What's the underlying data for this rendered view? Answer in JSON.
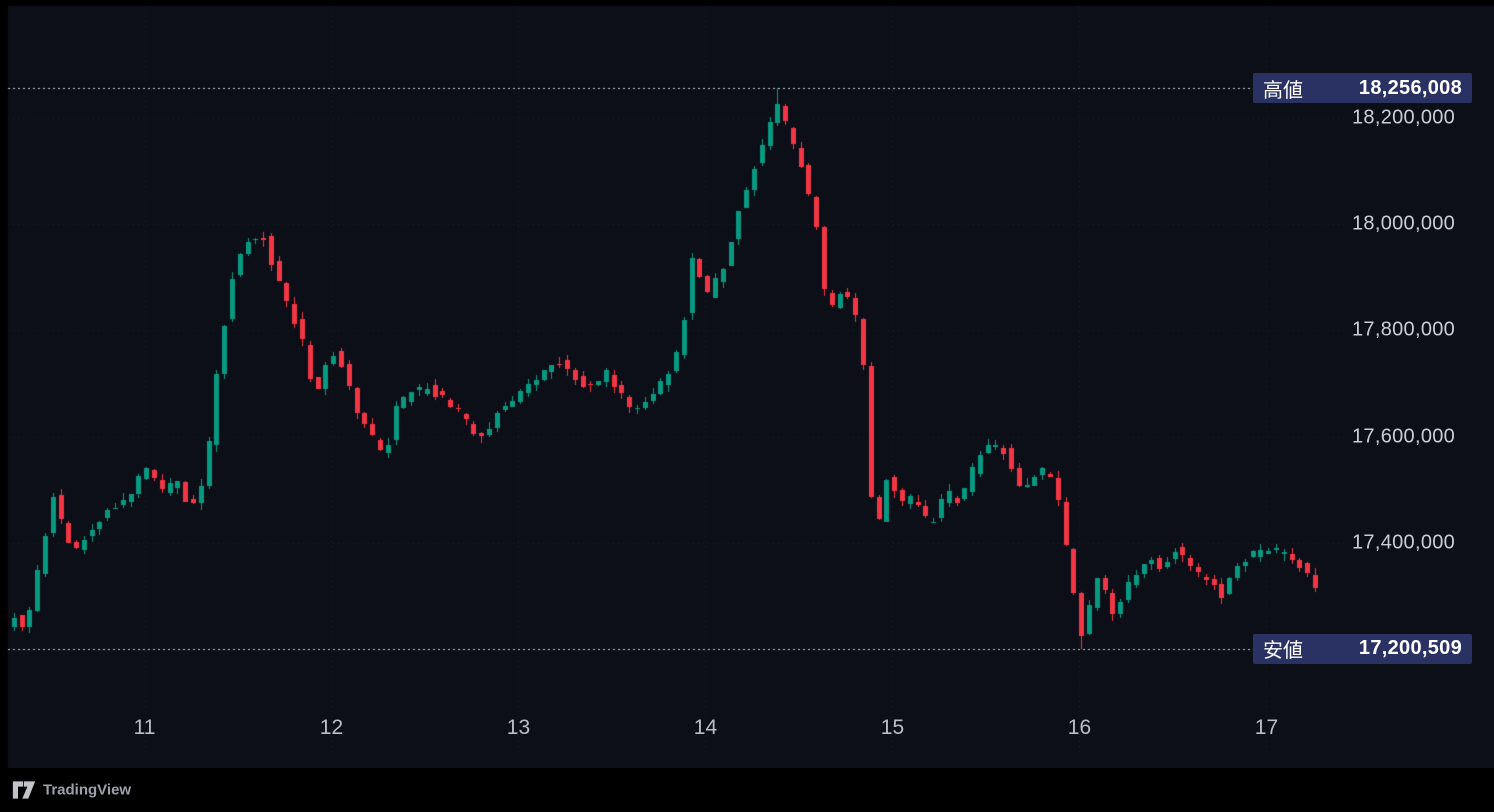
{
  "watermark": {
    "label": "TradingView"
  },
  "chart_data": {
    "type": "candlestick",
    "time_axis": {
      "tick_values": [
        11,
        12,
        13,
        14,
        15,
        16,
        17
      ],
      "tick_labels": [
        "11",
        "12",
        "13",
        "14",
        "15",
        "16",
        "17"
      ],
      "range": [
        10.27,
        17.42
      ]
    },
    "price_axis": {
      "tick_values": [
        18200000,
        18000000,
        17800000,
        17600000,
        17400000
      ],
      "tick_labels": [
        "18,200,000",
        "18,000,000",
        "17,800,000",
        "17,600,000",
        "17,400,000"
      ],
      "plot_range": [
        17104000,
        18411000
      ]
    },
    "high_marker": {
      "label": "高値",
      "value": 18256008,
      "value_label": "18,256,008"
    },
    "low_marker": {
      "label": "安値",
      "value": 17200509,
      "value_label": "17,200,509"
    },
    "colors": {
      "background": "#0c0f17",
      "up": "#089981",
      "down": "#f23645",
      "badge": "#2a3263",
      "axis_text": "#c9cdd7",
      "marker_line": "#c5c9d6",
      "grid": "rgba(170,178,200,0.10)"
    },
    "candles": {
      "interval_days": 0.0416667,
      "time_span": [
        10.28,
        17.3
      ],
      "noise": 30000,
      "seed": 11,
      "price_path": [
        [
          10.27,
          17238000
        ],
        [
          10.33,
          17262000
        ],
        [
          10.38,
          17230000
        ],
        [
          10.42,
          17300000
        ],
        [
          10.49,
          17420000
        ],
        [
          10.53,
          17491000
        ],
        [
          10.58,
          17430000
        ],
        [
          10.64,
          17373000
        ],
        [
          10.7,
          17410000
        ],
        [
          10.77,
          17444000
        ],
        [
          10.85,
          17470000
        ],
        [
          10.93,
          17482000
        ],
        [
          11.0,
          17530000
        ],
        [
          11.04,
          17538000
        ],
        [
          11.12,
          17491000
        ],
        [
          11.19,
          17523000
        ],
        [
          11.26,
          17459000
        ],
        [
          11.34,
          17520000
        ],
        [
          11.42,
          17760000
        ],
        [
          11.5,
          17924000
        ],
        [
          11.58,
          17971000
        ],
        [
          11.65,
          17980000
        ],
        [
          11.72,
          17905000
        ],
        [
          11.8,
          17839000
        ],
        [
          11.87,
          17773000
        ],
        [
          11.93,
          17670000
        ],
        [
          12.01,
          17764000
        ],
        [
          12.09,
          17726000
        ],
        [
          12.17,
          17632000
        ],
        [
          12.27,
          17585000
        ],
        [
          12.3,
          17545000
        ],
        [
          12.35,
          17651000
        ],
        [
          12.43,
          17679000
        ],
        [
          12.52,
          17692000
        ],
        [
          12.6,
          17674000
        ],
        [
          12.68,
          17655000
        ],
        [
          12.76,
          17617000
        ],
        [
          12.84,
          17598000
        ],
        [
          12.92,
          17655000
        ],
        [
          13.0,
          17674000
        ],
        [
          13.08,
          17698000
        ],
        [
          13.16,
          17723000
        ],
        [
          13.24,
          17741000
        ],
        [
          13.32,
          17711000
        ],
        [
          13.4,
          17692000
        ],
        [
          13.48,
          17723000
        ],
        [
          13.56,
          17679000
        ],
        [
          13.64,
          17647000
        ],
        [
          13.72,
          17679000
        ],
        [
          13.8,
          17711000
        ],
        [
          13.88,
          17764000
        ],
        [
          13.95,
          17942000
        ],
        [
          14.03,
          17867000
        ],
        [
          14.11,
          17918000
        ],
        [
          14.19,
          18018000
        ],
        [
          14.27,
          18102000
        ],
        [
          14.34,
          18168000
        ],
        [
          14.4,
          18228000
        ],
        [
          14.47,
          18168000
        ],
        [
          14.54,
          18093000
        ],
        [
          14.6,
          18027000
        ],
        [
          14.67,
          17830000
        ],
        [
          14.74,
          17877000
        ],
        [
          14.81,
          17848000
        ],
        [
          14.86,
          17755000
        ],
        [
          14.91,
          17463000
        ],
        [
          14.94,
          17430000
        ],
        [
          14.99,
          17529000
        ],
        [
          15.06,
          17473000
        ],
        [
          15.14,
          17486000
        ],
        [
          15.22,
          17429000
        ],
        [
          15.3,
          17497000
        ],
        [
          15.38,
          17473000
        ],
        [
          15.46,
          17548000
        ],
        [
          15.54,
          17589000
        ],
        [
          15.62,
          17572000
        ],
        [
          15.7,
          17505000
        ],
        [
          15.78,
          17523000
        ],
        [
          15.85,
          17548000
        ],
        [
          15.92,
          17454000
        ],
        [
          15.98,
          17322000
        ],
        [
          16.03,
          17228000
        ],
        [
          16.09,
          17298000
        ],
        [
          16.13,
          17354000
        ],
        [
          16.18,
          17260000
        ],
        [
          16.25,
          17303000
        ],
        [
          16.3,
          17335000
        ],
        [
          16.38,
          17373000
        ],
        [
          16.46,
          17354000
        ],
        [
          16.54,
          17394000
        ],
        [
          16.62,
          17350000
        ],
        [
          16.7,
          17332000
        ],
        [
          16.78,
          17303000
        ],
        [
          16.86,
          17360000
        ],
        [
          16.94,
          17379000
        ],
        [
          17.02,
          17388000
        ],
        [
          17.1,
          17383000
        ],
        [
          17.17,
          17369000
        ],
        [
          17.22,
          17347000
        ],
        [
          17.29,
          17307000
        ]
      ]
    }
  }
}
